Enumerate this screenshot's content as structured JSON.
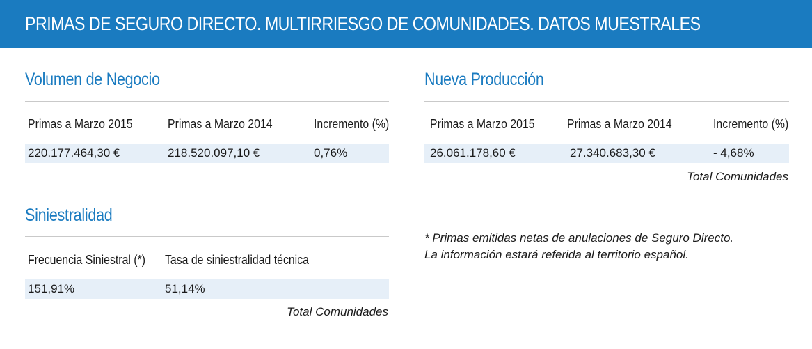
{
  "header": {
    "title": "PRIMAS DE SEGURO DIRECTO. MULTIRRIESGO DE COMUNIDADES. DATOS MUESTRALES"
  },
  "volumen": {
    "title": "Volumen de Negocio",
    "columns": [
      "Primas a Marzo 2015",
      "Primas a Marzo 2014",
      "Incremento (%)"
    ],
    "values": [
      "220.177.464,30 €",
      "218.520.097,10 €",
      "0,76%"
    ]
  },
  "nueva": {
    "title": "Nueva Producción",
    "columns": [
      "Primas a Marzo 2015",
      "Primas a Marzo 2014",
      "Incremento (%)"
    ],
    "values": [
      "26.061.178,60 €",
      "27.340.683,30 €",
      "- 4,68%"
    ],
    "caption": "Total Comunidades"
  },
  "siniestralidad": {
    "title": "Siniestralidad",
    "columns": [
      "Frecuencia Siniestral (*)",
      "Tasa de siniestralidad técnica"
    ],
    "values": [
      "151,91%",
      "51,14%"
    ],
    "caption": "Total Comunidades"
  },
  "note": {
    "line1": "* Primas emitidas netas de anulaciones de Seguro Directo.",
    "line2": "La información estará referida al territorio español."
  }
}
